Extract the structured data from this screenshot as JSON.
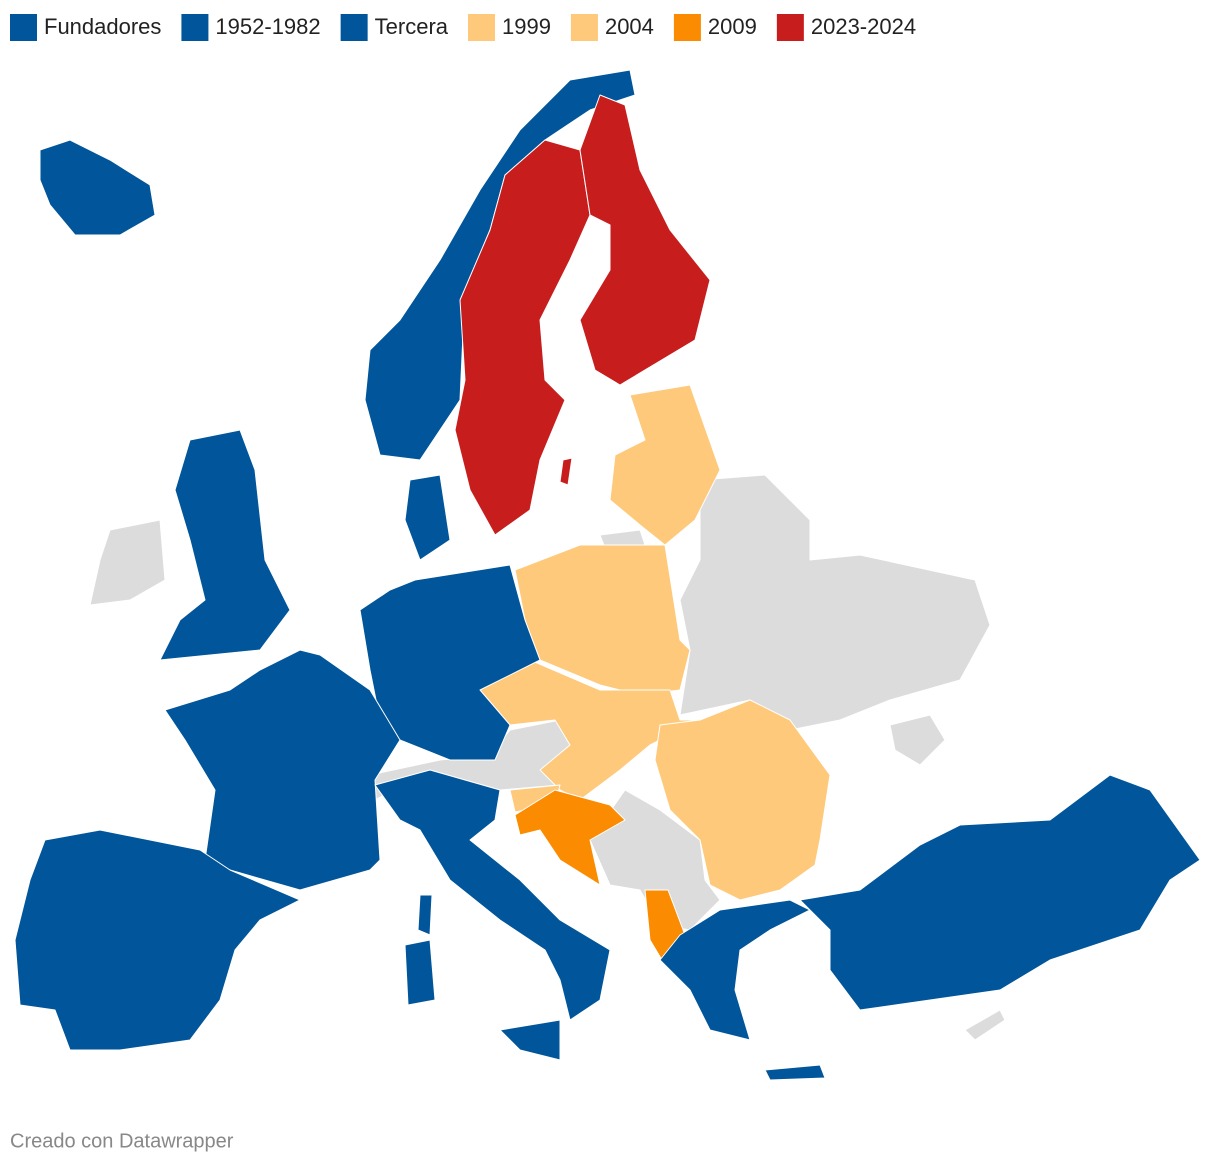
{
  "legend": [
    {
      "name": "Fundadores",
      "color": "#01559a"
    },
    {
      "name": "1952-1982",
      "color": "#01559a"
    },
    {
      "name": "Tercera",
      "color": "#01559a"
    },
    {
      "name": "1999",
      "color": "#fec97a"
    },
    {
      "name": "2004",
      "color": "#fec97a"
    },
    {
      "name": "2009",
      "color": "#fb8b00"
    },
    {
      "name": "2023-2024",
      "color": "#c71e1d"
    }
  ],
  "footer": "Creado con Datawrapper"
}
